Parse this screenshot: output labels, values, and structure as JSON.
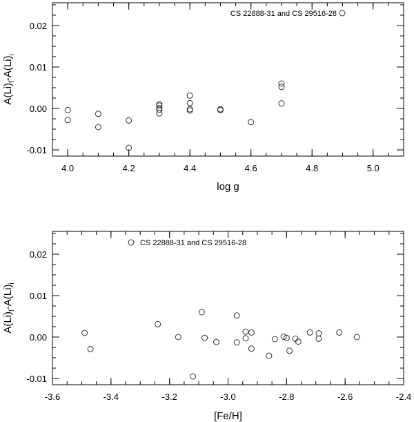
{
  "chart_data": [
    {
      "type": "scatter",
      "xlabel": "log g",
      "ylabel_main": "A(Li)",
      "ylabel_sub_f": "f",
      "ylabel_sub_i": "i",
      "xlim": [
        3.95,
        5.1
      ],
      "ylim": [
        -0.0115,
        0.0255
      ],
      "xticks": [
        4.0,
        4.2,
        4.4,
        4.6,
        4.8,
        5.0
      ],
      "xtick_labels": [
        "4.0",
        "4.2",
        "4.4",
        "4.6",
        "4.8",
        "5.0"
      ],
      "yticks": [
        -0.01,
        0.0,
        0.01,
        0.02
      ],
      "ytick_labels": [
        "-0.01",
        "0.00",
        "0.01",
        "0.02"
      ],
      "legend_text": "CS 22888-31 and CS 29516-28",
      "legend_placement": "top-right",
      "series": [
        {
          "name": "CS 22888-31 and CS 29516-28",
          "points": [
            {
              "x": 4.0,
              "y": -0.0004
            },
            {
              "x": 4.0,
              "y": -0.0028
            },
            {
              "x": 4.1,
              "y": -0.0013
            },
            {
              "x": 4.1,
              "y": -0.0045
            },
            {
              "x": 4.2,
              "y": -0.0029
            },
            {
              "x": 4.2,
              "y": -0.0095
            },
            {
              "x": 4.3,
              "y": 0.001
            },
            {
              "x": 4.3,
              "y": 0.0007
            },
            {
              "x": 4.3,
              "y": 0.0001
            },
            {
              "x": 4.3,
              "y": -0.0003
            },
            {
              "x": 4.3,
              "y": -0.0012
            },
            {
              "x": 4.4,
              "y": 0.0031
            },
            {
              "x": 4.4,
              "y": 0.0013
            },
            {
              "x": 4.4,
              "y": -0.0002
            },
            {
              "x": 4.4,
              "y": -0.0005
            },
            {
              "x": 4.5,
              "y": -0.0002
            },
            {
              "x": 4.5,
              "y": -0.0004
            },
            {
              "x": 4.6,
              "y": -0.0033
            },
            {
              "x": 4.7,
              "y": 0.006
            },
            {
              "x": 4.7,
              "y": 0.0052
            },
            {
              "x": 4.7,
              "y": 0.0012
            }
          ]
        }
      ]
    },
    {
      "type": "scatter",
      "xlabel": "[Fe/H]",
      "ylabel_main": "A(Li)",
      "ylabel_sub_f": "f",
      "ylabel_sub_i": "i",
      "xlim": [
        -3.6,
        -2.4
      ],
      "ylim": [
        -0.0115,
        0.0255
      ],
      "xticks": [
        -3.6,
        -3.4,
        -3.2,
        -3.0,
        -2.8,
        -2.6,
        -2.4
      ],
      "xtick_labels": [
        "-3.6",
        "-3.4",
        "-3.2",
        "-3.0",
        "-2.8",
        "-2.6",
        "-2.4"
      ],
      "yticks": [
        -0.01,
        0.0,
        0.01,
        0.02
      ],
      "ytick_labels": [
        "-0.01",
        "0.00",
        "0.01",
        "0.02"
      ],
      "legend_text": "CS 22888-31 and CS 29516-28",
      "legend_placement": "top-left",
      "series": [
        {
          "name": "CS 22888-31 and CS 29516-28",
          "points": [
            {
              "x": -3.49,
              "y": 0.001
            },
            {
              "x": -3.47,
              "y": -0.0029
            },
            {
              "x": -3.24,
              "y": 0.0031
            },
            {
              "x": -3.17,
              "y": 0.0
            },
            {
              "x": -3.12,
              "y": -0.0095
            },
            {
              "x": -3.09,
              "y": 0.006
            },
            {
              "x": -3.08,
              "y": -0.0002
            },
            {
              "x": -3.04,
              "y": -0.0012
            },
            {
              "x": -2.97,
              "y": 0.0052
            },
            {
              "x": -2.97,
              "y": -0.0013
            },
            {
              "x": -2.94,
              "y": 0.0013
            },
            {
              "x": -2.94,
              "y": -0.0003
            },
            {
              "x": -2.92,
              "y": 0.0011
            },
            {
              "x": -2.92,
              "y": -0.0028
            },
            {
              "x": -2.86,
              "y": -0.0045
            },
            {
              "x": -2.84,
              "y": -0.0005
            },
            {
              "x": -2.81,
              "y": 0.0001
            },
            {
              "x": -2.8,
              "y": -0.0002
            },
            {
              "x": -2.79,
              "y": -0.0033
            },
            {
              "x": -2.77,
              "y": -0.0004
            },
            {
              "x": -2.76,
              "y": -0.0011
            },
            {
              "x": -2.72,
              "y": 0.0011
            },
            {
              "x": -2.69,
              "y": 0.0009
            },
            {
              "x": -2.69,
              "y": -0.0004
            },
            {
              "x": -2.62,
              "y": 0.0011
            },
            {
              "x": -2.56,
              "y": 0.0
            }
          ]
        }
      ]
    }
  ]
}
